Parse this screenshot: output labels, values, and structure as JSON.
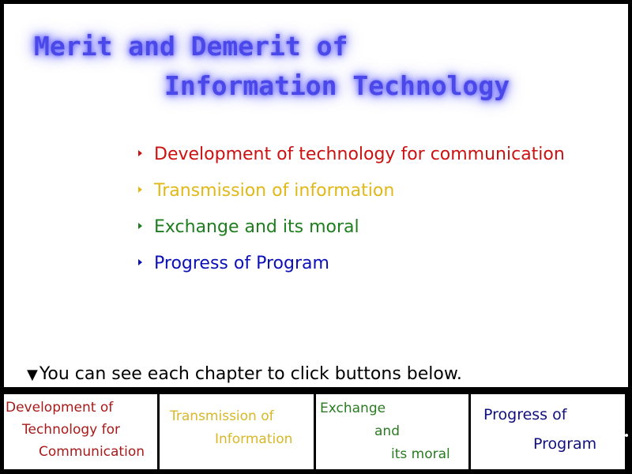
{
  "title": {
    "line1": "Merit and Demerit of",
    "line2": "Information Technology"
  },
  "topics": [
    {
      "label": "Development of technology for communication",
      "color": "#cc1111"
    },
    {
      "label": "Transmission of information",
      "color": "#e0b818"
    },
    {
      "label": "Exchange and its moral",
      "color": "#1e7d1e"
    },
    {
      "label": "Progress of Program",
      "color": "#0b10b8"
    }
  ],
  "hint": {
    "marker": "▼",
    "text": "You can see each chapter to click buttons below."
  },
  "buttons": [
    {
      "lines": [
        "Development of",
        "Technology for",
        "Communication"
      ],
      "color": "#a81a1a"
    },
    {
      "lines": [
        "Transmission of",
        "Information"
      ],
      "color": "#d8b828"
    },
    {
      "lines": [
        "Exchange",
        "and",
        "its moral"
      ],
      "color": "#2a7a22"
    },
    {
      "lines": [
        "Progress of",
        "Program"
      ],
      "color": "#10107e"
    }
  ]
}
